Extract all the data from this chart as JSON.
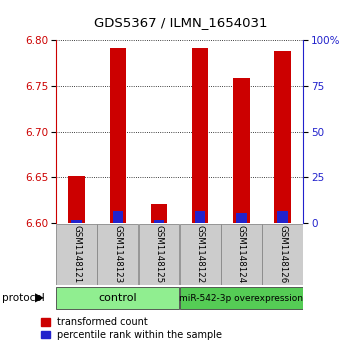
{
  "title": "GDS5367 / ILMN_1654031",
  "samples": [
    "GSM1148121",
    "GSM1148123",
    "GSM1148125",
    "GSM1148122",
    "GSM1148124",
    "GSM1148126"
  ],
  "red_values": [
    6.651,
    6.791,
    6.621,
    6.791,
    6.758,
    6.788
  ],
  "blue_values": [
    6.603,
    6.613,
    6.603,
    6.613,
    6.611,
    6.613
  ],
  "baseline": 6.6,
  "ylim": [
    6.6,
    6.8
  ],
  "yticks_left": [
    6.6,
    6.65,
    6.7,
    6.75,
    6.8
  ],
  "yticks_right": [
    0,
    25,
    50,
    75,
    100
  ],
  "yticks_right_vals": [
    6.6,
    6.65,
    6.7,
    6.75,
    6.8
  ],
  "red_color": "#CC0000",
  "blue_color": "#2222CC",
  "bar_width": 0.4,
  "blue_bar_width": 0.25,
  "axis_left_color": "#CC0000",
  "axis_right_color": "#2222CC",
  "label_gray": "#CCCCCC",
  "protocol_green": "#90EE90",
  "protocol_green_dark": "#55CC55"
}
